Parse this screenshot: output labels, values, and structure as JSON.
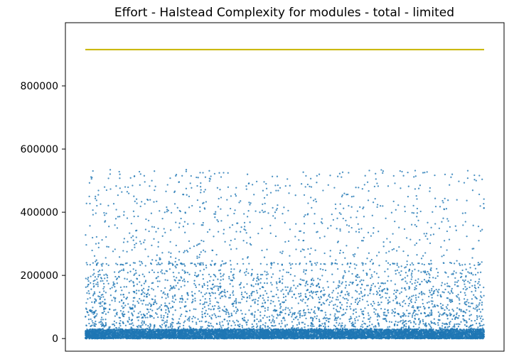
{
  "chart_data": {
    "type": "scatter",
    "title": "Effort - Halstead Complexity for modules - total - limited",
    "xlabel": "",
    "ylabel": "",
    "xticks_visible": false,
    "ylim": [
      -40000,
      1000000
    ],
    "yticks": [
      0,
      200000,
      400000,
      600000,
      800000
    ],
    "ytick_labels": [
      "0",
      "200000",
      "400000",
      "600000",
      "800000"
    ],
    "grid": false,
    "legend": "none",
    "x_count": 15000,
    "threshold_line": {
      "y": 915000,
      "color": "#c8b400"
    },
    "series": [
      {
        "color": "#1f77b4",
        "points": [
          [
            250,
            510000
          ],
          [
            380,
            450000
          ],
          [
            800,
            470000
          ],
          [
            1300,
            520000
          ],
          [
            1500,
            480000
          ],
          [
            2600,
            530000
          ],
          [
            3400,
            515000
          ],
          [
            4700,
            505000
          ],
          [
            5200,
            525000
          ],
          [
            6100,
            520000
          ],
          [
            6800,
            490000
          ],
          [
            7600,
            505000
          ],
          [
            8300,
            515000
          ],
          [
            8800,
            520000
          ],
          [
            9900,
            525000
          ],
          [
            11200,
            530000
          ],
          [
            11600,
            515000
          ],
          [
            12700,
            525000
          ],
          [
            13800,
            520000
          ],
          [
            14700,
            500000
          ],
          [
            400,
            300000
          ],
          [
            1200,
            350000
          ],
          [
            2100,
            300000
          ],
          [
            2800,
            250000
          ],
          [
            3600,
            380000
          ],
          [
            4300,
            300000
          ],
          [
            5100,
            230000
          ],
          [
            6200,
            300000
          ],
          [
            6700,
            400000
          ],
          [
            7100,
            240000
          ],
          [
            7400,
            235000
          ],
          [
            8100,
            340000
          ],
          [
            9000,
            270000
          ],
          [
            9700,
            380000
          ],
          [
            10400,
            310000
          ],
          [
            11100,
            420000
          ],
          [
            11800,
            290000
          ],
          [
            12400,
            360000
          ],
          [
            13100,
            330000
          ],
          [
            13600,
            280000
          ],
          [
            14300,
            370000
          ],
          [
            14800,
            310000
          ],
          [
            700,
            150000
          ],
          [
            1800,
            180000
          ],
          [
            3000,
            160000
          ],
          [
            4500,
            140000
          ],
          [
            5800,
            170000
          ],
          [
            7300,
            190000
          ],
          [
            8500,
            150000
          ],
          [
            9800,
            180000
          ],
          [
            10900,
            165000
          ],
          [
            12100,
            175000
          ],
          [
            13300,
            155000
          ],
          [
            14500,
            185000
          ],
          [
            600,
            60000
          ],
          [
            2000,
            80000
          ],
          [
            3300,
            50000
          ],
          [
            5000,
            70000
          ],
          [
            6500,
            90000
          ],
          [
            8000,
            60000
          ],
          [
            9500,
            85000
          ],
          [
            11000,
            75000
          ],
          [
            12500,
            95000
          ],
          [
            14000,
            65000
          ],
          [
            14900,
            55000
          ]
        ]
      }
    ]
  }
}
